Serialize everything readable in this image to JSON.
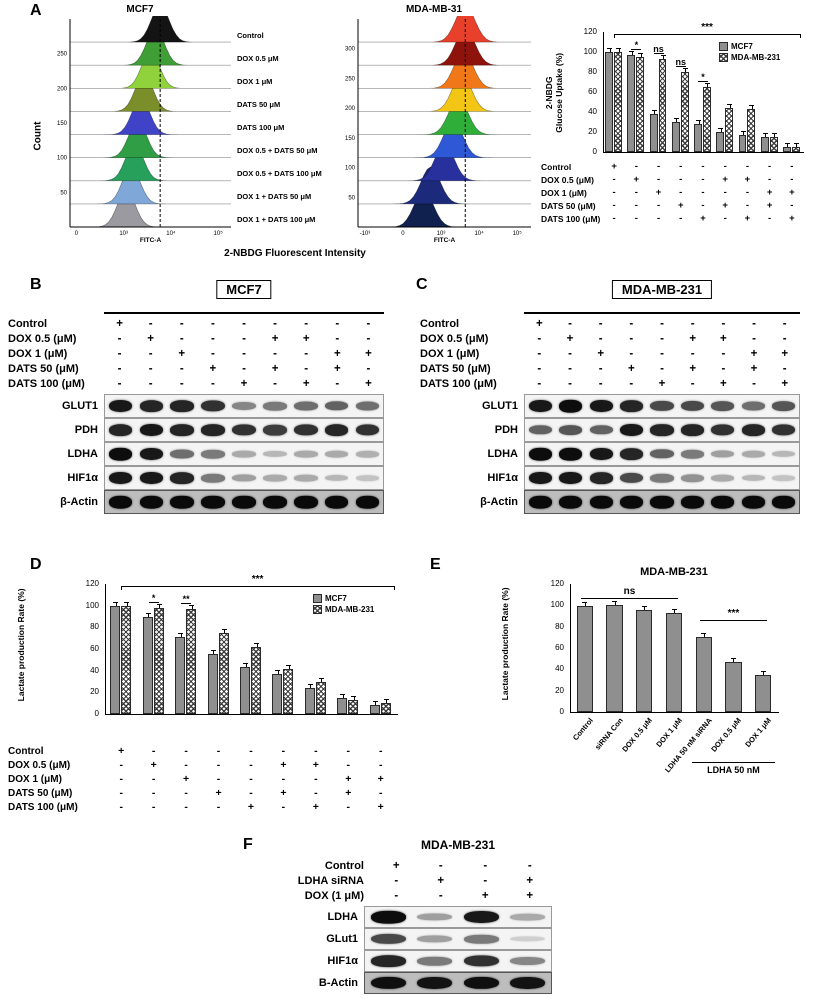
{
  "colors": {
    "bar_gray": "#8f8f8f",
    "band_black": "#000000"
  },
  "panels": {
    "A": {
      "label": "A",
      "flow_xlabel": "2-NBDG Fluorescent Intensity",
      "flow_left": {
        "title": "MCF7",
        "ylabel": "Count",
        "xlabel": "FITC-A",
        "yticks": [
          "250",
          "200",
          "150",
          "100",
          "50"
        ],
        "xticks": [
          "0",
          "10³",
          "10⁴",
          "10⁵"
        ],
        "dash_x": 0.56,
        "series": [
          {
            "label": "Control",
            "color": "#141414",
            "peak": 0.56
          },
          {
            "label": "DOX 0.5 μM",
            "color": "#3f9e35",
            "peak": 0.53
          },
          {
            "label": "DOX 1 μM",
            "color": "#8fd23c",
            "peak": 0.5
          },
          {
            "label": "DATS 50 μM",
            "color": "#7a8f2a",
            "peak": 0.46
          },
          {
            "label": "DATS 100 μM",
            "color": "#4043c8",
            "peak": 0.44
          },
          {
            "label": "DOX 0.5 + DATS 50 μM",
            "color": "#2f9e44",
            "peak": 0.42
          },
          {
            "label": "DOX 0.5 + DATS 100 μM",
            "color": "#27a05c",
            "peak": 0.4
          },
          {
            "label": "DOX 1 + DATS 50 μM",
            "color": "#7fa8d9",
            "peak": 0.38
          },
          {
            "label": "DOX 1 + DATS 100 μM",
            "color": "#9a9aa0",
            "peak": 0.35
          }
        ]
      },
      "flow_right": {
        "title": "MDA-MB-31",
        "xlabel": "FITC-A",
        "yticks": [
          "300",
          "250",
          "200",
          "150",
          "100",
          "50"
        ],
        "xticks": [
          "-10³",
          "0",
          "10³",
          "10⁴",
          "10⁵"
        ],
        "dash_x": 0.62,
        "series": [
          {
            "label": "",
            "color": "#e8402a",
            "peak": 0.62
          },
          {
            "label": "",
            "color": "#8e130c",
            "peak": 0.62
          },
          {
            "label": "",
            "color": "#f07818",
            "peak": 0.61
          },
          {
            "label": "",
            "color": "#f3c514",
            "peak": 0.6
          },
          {
            "label": "",
            "color": "#2fae3a",
            "peak": 0.58
          },
          {
            "label": "",
            "color": "#2f58d6",
            "peak": 0.55
          },
          {
            "label": "",
            "color": "#27309c",
            "peak": 0.5
          },
          {
            "label": "",
            "color": "#1b2a7a",
            "peak": 0.42
          },
          {
            "label": "",
            "color": "#10204f",
            "peak": 0.38
          }
        ]
      },
      "matrix": {
        "rows": [
          {
            "label": "Control",
            "cells": [
              "+",
              "-",
              "-",
              "-",
              "-",
              "-",
              "-",
              "-",
              "-"
            ]
          },
          {
            "label": "DOX 0.5 (μM)",
            "cells": [
              "-",
              "+",
              "-",
              "-",
              "-",
              "+",
              "+",
              "-",
              "-"
            ]
          },
          {
            "label": "DOX 1 (μM)",
            "cells": [
              "-",
              "-",
              "+",
              "-",
              "-",
              "-",
              "-",
              "+",
              "+"
            ]
          },
          {
            "label": "DATS 50 (μM)",
            "cells": [
              "-",
              "-",
              "-",
              "+",
              "-",
              "+",
              "-",
              "+",
              "-"
            ]
          },
          {
            "label": "DATS 100 (μM)",
            "cells": [
              "-",
              "-",
              "-",
              "-",
              "+",
              "-",
              "+",
              "-",
              "+"
            ]
          }
        ]
      }
    },
    "B": {
      "label": "B",
      "title": "MCF7",
      "matrix": {
        "rows": [
          {
            "label": "Control",
            "cells": [
              "+",
              "-",
              "-",
              "-",
              "-",
              "-",
              "-",
              "-",
              "-"
            ]
          },
          {
            "label": "DOX 0.5 (μM)",
            "cells": [
              "-",
              "+",
              "-",
              "-",
              "-",
              "+",
              "+",
              "-",
              "-"
            ]
          },
          {
            "label": "DOX 1 (μM)",
            "cells": [
              "-",
              "-",
              "+",
              "-",
              "-",
              "-",
              "-",
              "+",
              "+"
            ]
          },
          {
            "label": "DATS 50 (μM)",
            "cells": [
              "-",
              "-",
              "-",
              "+",
              "-",
              "+",
              "-",
              "+",
              "-"
            ]
          },
          {
            "label": "DATS 100 (μM)",
            "cells": [
              "-",
              "-",
              "-",
              "-",
              "+",
              "-",
              "+",
              "-",
              "+"
            ]
          }
        ]
      },
      "blot": {
        "proteins": [
          {
            "name": "GLUT1",
            "intensities": [
              0.9,
              0.85,
              0.85,
              0.8,
              0.45,
              0.5,
              0.55,
              0.6,
              0.55
            ]
          },
          {
            "name": "PDH",
            "intensities": [
              0.85,
              0.9,
              0.85,
              0.85,
              0.8,
              0.75,
              0.8,
              0.85,
              0.8
            ]
          },
          {
            "name": "LDHA",
            "intensities": [
              0.95,
              0.9,
              0.55,
              0.5,
              0.3,
              0.25,
              0.3,
              0.3,
              0.28
            ]
          },
          {
            "name": "HIF1α",
            "intensities": [
              0.9,
              0.9,
              0.85,
              0.5,
              0.35,
              0.3,
              0.3,
              0.25,
              0.2
            ]
          },
          {
            "name": "β-Actin",
            "intensities": [
              0.95,
              0.95,
              0.95,
              0.95,
              0.95,
              0.95,
              0.95,
              0.95,
              0.95
            ]
          }
        ]
      }
    },
    "C": {
      "label": "C",
      "title": "MDA-MB-231",
      "matrix": {
        "rows": [
          {
            "label": "Control",
            "cells": [
              "+",
              "-",
              "-",
              "-",
              "-",
              "-",
              "-",
              "-",
              "-"
            ]
          },
          {
            "label": "DOX 0.5 (μM)",
            "cells": [
              "-",
              "+",
              "-",
              "-",
              "-",
              "+",
              "+",
              "-",
              "-"
            ]
          },
          {
            "label": "DOX 1 (μM)",
            "cells": [
              "-",
              "-",
              "+",
              "-",
              "-",
              "-",
              "-",
              "+",
              "+"
            ]
          },
          {
            "label": "DATS 50 (μM)",
            "cells": [
              "-",
              "-",
              "-",
              "+",
              "-",
              "+",
              "-",
              "+",
              "-"
            ]
          },
          {
            "label": "DATS 100 (μM)",
            "cells": [
              "-",
              "-",
              "-",
              "-",
              "+",
              "-",
              "+",
              "-",
              "+"
            ]
          }
        ]
      },
      "blot": {
        "proteins": [
          {
            "name": "GLUT1",
            "intensities": [
              0.9,
              0.95,
              0.9,
              0.85,
              0.7,
              0.7,
              0.65,
              0.55,
              0.65
            ]
          },
          {
            "name": "PDH",
            "intensities": [
              0.6,
              0.65,
              0.6,
              0.9,
              0.85,
              0.85,
              0.8,
              0.85,
              0.8
            ]
          },
          {
            "name": "LDHA",
            "intensities": [
              0.95,
              0.95,
              0.9,
              0.85,
              0.6,
              0.5,
              0.35,
              0.3,
              0.25
            ]
          },
          {
            "name": "HIF1α",
            "intensities": [
              0.9,
              0.9,
              0.85,
              0.7,
              0.5,
              0.4,
              0.3,
              0.25,
              0.2
            ]
          },
          {
            "name": "β-Actin",
            "intensities": [
              0.95,
              0.95,
              0.95,
              0.95,
              0.95,
              0.95,
              0.95,
              0.95,
              0.95
            ]
          }
        ]
      }
    },
    "D": {
      "label": "D",
      "matrix": {
        "rows": [
          {
            "label": "Control",
            "cells": [
              "+",
              "-",
              "-",
              "-",
              "-",
              "-",
              "-",
              "-",
              "-"
            ]
          },
          {
            "label": "DOX 0.5 (μM)",
            "cells": [
              "-",
              "+",
              "-",
              "-",
              "-",
              "+",
              "+",
              "-",
              "-"
            ]
          },
          {
            "label": "DOX 1 (μM)",
            "cells": [
              "-",
              "-",
              "+",
              "-",
              "-",
              "-",
              "-",
              "+",
              "+"
            ]
          },
          {
            "label": "DATS 50 (μM)",
            "cells": [
              "-",
              "-",
              "-",
              "+",
              "-",
              "+",
              "-",
              "+",
              "-"
            ]
          },
          {
            "label": "DATS 100 (μM)",
            "cells": [
              "-",
              "-",
              "-",
              "-",
              "+",
              "-",
              "+",
              "-",
              "+"
            ]
          }
        ]
      }
    },
    "E": {
      "label": "E"
    },
    "F": {
      "label": "F",
      "title": "MDA-MB-231",
      "matrix": {
        "rows": [
          {
            "label": "Control",
            "cells": [
              "+",
              "-",
              "-",
              "-"
            ]
          },
          {
            "label": "LDHA siRNA",
            "cells": [
              "-",
              "+",
              "-",
              "+"
            ]
          },
          {
            "label": "DOX (1 μM)",
            "cells": [
              "-",
              "-",
              "+",
              "+"
            ]
          }
        ]
      },
      "blot": {
        "proteins": [
          {
            "name": "LDHA",
            "intensities": [
              0.95,
              0.35,
              0.9,
              0.3
            ]
          },
          {
            "name": "GLut1",
            "intensities": [
              0.7,
              0.35,
              0.5,
              0.15
            ]
          },
          {
            "name": "HIF1α",
            "intensities": [
              0.85,
              0.5,
              0.8,
              0.45
            ]
          },
          {
            "name": "B-Actin",
            "intensities": [
              0.92,
              0.9,
              0.92,
              0.9
            ]
          }
        ]
      }
    }
  },
  "chart_data": [
    {
      "id": "A_glucose_uptake",
      "type": "bar",
      "title": "",
      "ylabel": "2-NBDG\nGlucose Uptake  (%)",
      "ylim": [
        0,
        120
      ],
      "yticks": [
        0,
        20,
        40,
        60,
        80,
        100,
        120
      ],
      "categories": [
        "Control",
        "DOX 0.5",
        "DOX 1",
        "DATS 50",
        "DATS 100",
        "DOX 0.5 + DATS 50",
        "DOX 0.5 + DATS 100",
        "DOX 1 + DATS 50",
        "DOX 1 + DATS 100"
      ],
      "series": [
        {
          "name": "MCF7",
          "values": [
            100,
            97,
            38,
            30,
            28,
            20,
            17,
            15,
            5
          ]
        },
        {
          "name": "MDA-MB-231",
          "values": [
            100,
            95,
            93,
            80,
            65,
            44,
            43,
            15,
            5
          ]
        }
      ],
      "legend_position": "top-right",
      "top_bracket": "***",
      "marks": [
        {
          "group": 1,
          "text": "*"
        },
        {
          "group": 2,
          "text": "ns"
        },
        {
          "group": 3,
          "text": "ns"
        },
        {
          "group": 4,
          "text": "*"
        }
      ]
    },
    {
      "id": "D_lactate_rate",
      "type": "bar",
      "title": "",
      "ylabel": "Lactate production Rate (%)",
      "ylim": [
        0,
        120
      ],
      "yticks": [
        0,
        20,
        40,
        60,
        80,
        100,
        120
      ],
      "categories": [
        "Control",
        "DOX 0.5",
        "DOX 1",
        "DATS 50",
        "DATS 100",
        "DOX 0.5 + DATS 50",
        "DOX 0.5 + DATS 100",
        "DOX 1 + DATS 50",
        "DOX 1 + DATS 100"
      ],
      "series": [
        {
          "name": "MCF7",
          "values": [
            100,
            90,
            71,
            55,
            43,
            37,
            24,
            15,
            8
          ]
        },
        {
          "name": "MDA-MB-231",
          "values": [
            100,
            98,
            97,
            75,
            62,
            42,
            30,
            13,
            10
          ]
        }
      ],
      "legend_position": "top-right",
      "top_bracket": "***",
      "marks": [
        {
          "group": 1,
          "text": "*"
        },
        {
          "group": 2,
          "text": "**"
        }
      ]
    },
    {
      "id": "E_lactate_sirna",
      "type": "bar",
      "title": "MDA-MB-231",
      "ylabel": "Lactate production Rate (%)",
      "ylim": [
        0,
        120
      ],
      "yticks": [
        0,
        20,
        40,
        60,
        80,
        100,
        120
      ],
      "categories": [
        "Control",
        "siRNA Con",
        "DOX 0.5 μM",
        "DOX 1 μM",
        "LDHA 50 nM siRNA",
        "DOX 0.5 μM",
        "DOX 1 μM"
      ],
      "values": [
        99,
        100,
        96,
        93,
        70,
        47,
        35
      ],
      "brackets": [
        {
          "from": 0,
          "to": 3,
          "text": "ns",
          "y": 107
        },
        {
          "from": 4,
          "to": 6,
          "text": "***",
          "y": 86
        }
      ],
      "group_label": {
        "from": 4,
        "to": 6,
        "text": "LDHA 50 nM"
      }
    }
  ]
}
